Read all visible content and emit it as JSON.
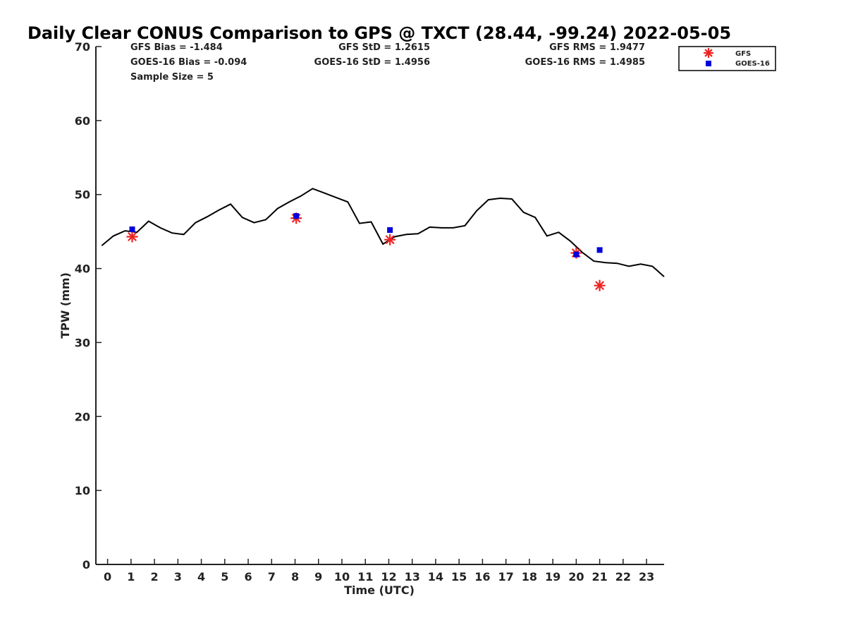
{
  "chart_data": {
    "type": "line",
    "title": "Daily Clear CONUS Comparison to GPS @ TXCT (28.44, -99.24) 2022-05-05",
    "xlabel": "Time (UTC)",
    "ylabel": "TPW (mm)",
    "xlim": [
      -0.5,
      23.75
    ],
    "ylim": [
      0,
      70
    ],
    "xticks": [
      "0",
      "1",
      "2",
      "3",
      "4",
      "5",
      "6",
      "7",
      "8",
      "9",
      "10",
      "11",
      "12",
      "13",
      "14",
      "15",
      "16",
      "17",
      "18",
      "19",
      "20",
      "21",
      "22",
      "23"
    ],
    "yticks": [
      "0",
      "10",
      "20",
      "30",
      "40",
      "50",
      "60",
      "70"
    ],
    "grid": false,
    "legend_position": "top-right, outside plot",
    "stats": [
      [
        "GFS Bias = -1.484",
        "GFS StD = 1.2615",
        "GFS RMS = 1.9477"
      ],
      [
        "GOES-16 Bias = -0.094",
        "GOES-16 StD = 1.4956",
        "GOES-16 RMS = 1.4985"
      ],
      [
        "Sample Size = 5"
      ]
    ],
    "legend": [
      "GFS",
      "GOES-16"
    ],
    "series": [
      {
        "kind": "line",
        "color": "#000000",
        "x": [
          -0.25,
          0.25,
          0.75,
          1.25,
          1.75,
          2.25,
          2.75,
          3.25,
          3.75,
          4.25,
          4.75,
          5.25,
          5.75,
          6.25,
          6.75,
          7.25,
          7.75,
          8.25,
          8.75,
          9.25,
          9.75,
          10.25,
          10.75,
          11.25,
          11.75,
          12.25,
          12.75,
          13.25,
          13.75,
          14.25,
          14.75,
          15.25,
          15.75,
          16.25,
          16.75,
          17.25,
          17.75,
          18.25,
          18.75,
          19.25,
          19.75,
          20.25,
          20.75,
          21.25,
          21.75,
          22.25,
          22.75,
          23.25,
          23.75
        ],
        "y": [
          43.1,
          44.4,
          45.1,
          44.9,
          46.4,
          45.5,
          44.8,
          44.6,
          46.2,
          47.0,
          47.9,
          48.7,
          46.9,
          46.2,
          46.6,
          48.1,
          49.0,
          49.8,
          50.8,
          50.2,
          49.6,
          49.0,
          46.1,
          46.3,
          43.3,
          44.3,
          44.6,
          44.7,
          45.6,
          45.5,
          45.5,
          45.8,
          47.8,
          49.3,
          49.5,
          49.4,
          47.6,
          46.9,
          44.4,
          44.9,
          43.7,
          42.2,
          41.0,
          40.8,
          40.7,
          40.3,
          40.6,
          40.3,
          38.9
        ]
      },
      {
        "name": "GFS",
        "kind": "star",
        "color": "#ee2222",
        "x": [
          1.05,
          8.05,
          12.05,
          20.0,
          21.0
        ],
        "y": [
          44.3,
          46.8,
          43.9,
          42.1,
          37.7
        ]
      },
      {
        "name": "GOES-16",
        "kind": "square",
        "color": "#0000dd",
        "x": [
          1.05,
          8.05,
          12.05,
          20.0,
          21.0
        ],
        "y": [
          45.3,
          47.1,
          45.2,
          41.9,
          42.5
        ]
      }
    ]
  }
}
